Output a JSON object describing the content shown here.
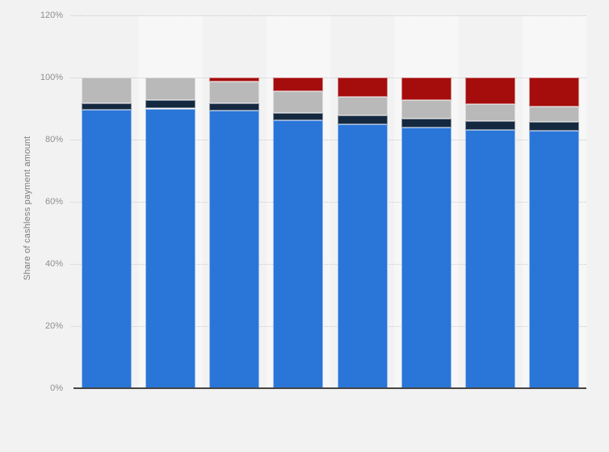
{
  "page": {
    "background_color": "#f2f2f2"
  },
  "chart_data": {
    "type": "bar",
    "stacked": true,
    "orientation": "vertical",
    "title": "",
    "xlabel": "",
    "ylabel": "Share of cashless payment amount",
    "ylim": [
      0,
      120
    ],
    "y_tick_step": 20,
    "y_ticks": [
      "0%",
      "20%",
      "40%",
      "60%",
      "80%",
      "100%",
      "120%"
    ],
    "n_bars": 8,
    "categories": [
      "",
      "",
      "",
      "",
      "",
      "",
      "",
      ""
    ],
    "x_tick_labels_visible": false,
    "legend_visible": false,
    "grid": "horizontal dotted",
    "series": [
      {
        "name": "blue-bottom-segment",
        "color": "#2a75d8",
        "values": [
          89.6,
          90.0,
          89.4,
          86.2,
          84.9,
          84.0,
          83.1,
          82.9
        ]
      },
      {
        "name": "dark-navy-segment",
        "color": "#142940",
        "values": [
          2.2,
          2.6,
          2.3,
          2.3,
          2.8,
          2.8,
          2.9,
          2.8
        ]
      },
      {
        "name": "gray-segment",
        "color": "#b9b9b9",
        "values": [
          8.2,
          7.4,
          7.0,
          7.1,
          6.1,
          5.9,
          5.4,
          4.9
        ]
      },
      {
        "name": "red-top-segment",
        "color": "#a50d0d",
        "values": [
          0,
          0,
          1.3,
          4.4,
          6.2,
          7.3,
          8.6,
          9.4
        ]
      }
    ]
  },
  "style": {
    "plot_background_base": "#f2f2f2",
    "plot_background_alt_stripe": "#f7f7f7",
    "gridline_color": "#c9c9c9",
    "axis_line_color": "#454545",
    "tick_label_color": "#8f8f8f",
    "axis_title_color": "#7d7d7d"
  }
}
